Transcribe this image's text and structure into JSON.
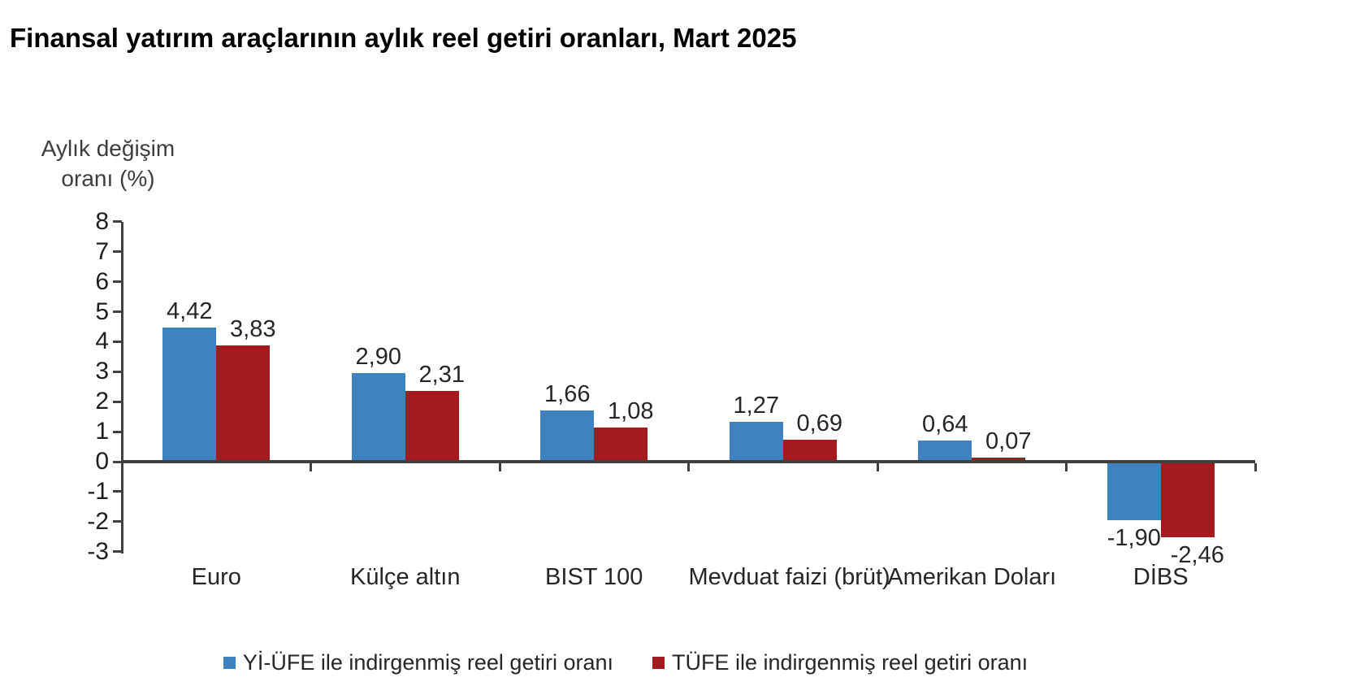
{
  "chart_data": {
    "type": "bar",
    "title": "Finansal yatırım araçlarının aylık reel getiri oranları, Mart 2025",
    "y_axis_label": "Aylık değişim\noranı (%)",
    "categories": [
      "Euro",
      "Külçe altın",
      "BIST 100",
      "Mevduat faizi (brüt)",
      "Amerikan Doları",
      "DİBS"
    ],
    "series": [
      {
        "name": "Yİ-ÜFE ile indirgenmiş reel getiri oranı",
        "color": "#3E82C0",
        "values": [
          4.42,
          2.9,
          1.66,
          1.27,
          0.64,
          -1.9
        ],
        "labels": [
          "4,42",
          "2,90",
          "1,66",
          "1,27",
          "0,64",
          "-1,90"
        ]
      },
      {
        "name": "TÜFE ile indirgenmiş reel getiri oranı",
        "color": "#A51A1C",
        "values": [
          3.83,
          2.31,
          1.08,
          0.69,
          0.07,
          -2.46
        ],
        "labels": [
          "3,83",
          "2,31",
          "1,08",
          "0,69",
          "0,07",
          "-2,46"
        ]
      }
    ],
    "y_ticks": [
      8,
      7,
      6,
      5,
      4,
      3,
      2,
      1,
      0,
      -1,
      -2,
      -3
    ],
    "ylim": [
      -3,
      8
    ],
    "grid": false,
    "legend_position": "bottom",
    "axis_color": "#404040"
  }
}
